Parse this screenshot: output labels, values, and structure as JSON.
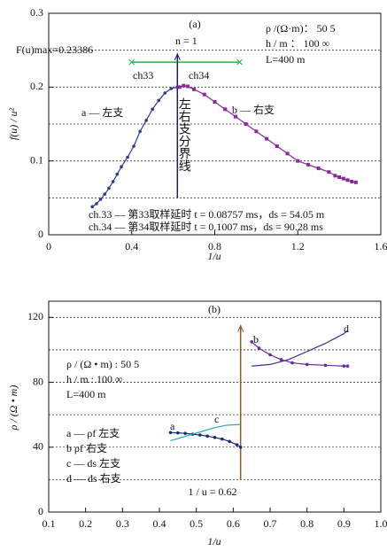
{
  "chart_data": [
    {
      "type": "line",
      "xlabel": "1/u",
      "ylabel": "f(u) / u²",
      "xlim": [
        0,
        1.6
      ],
      "xticks": [
        0,
        0.4,
        0.8,
        1.2,
        1.6
      ],
      "ylim": [
        0,
        0.3
      ],
      "yticks": [
        0,
        0.1,
        0.2,
        0.3
      ],
      "ygrid": [
        0.05,
        0.1,
        0.15,
        0.2,
        0.25
      ],
      "series": [
        {
          "color": "#2a3a9a",
          "marker": "circle",
          "x": [
            0.21,
            0.23,
            0.25,
            0.27,
            0.29,
            0.31,
            0.33,
            0.35,
            0.38,
            0.41,
            0.44,
            0.47,
            0.5,
            0.53,
            0.56,
            0.59,
            0.62
          ],
          "values": [
            0.038,
            0.042,
            0.048,
            0.055,
            0.063,
            0.072,
            0.082,
            0.092,
            0.105,
            0.12,
            0.14,
            0.155,
            0.17,
            0.182,
            0.192,
            0.198,
            0.2
          ]
        },
        {
          "color": "#8a2a9a",
          "marker": "square",
          "x": [
            0.63,
            0.65,
            0.67,
            0.7,
            0.75,
            0.8,
            0.85,
            0.9,
            0.95,
            1.0,
            1.05,
            1.1,
            1.15,
            1.2,
            1.25,
            1.3,
            1.35,
            1.38,
            1.4,
            1.42,
            1.44,
            1.46,
            1.48
          ],
          "values": [
            0.2,
            0.202,
            0.201,
            0.197,
            0.19,
            0.18,
            0.17,
            0.16,
            0.15,
            0.14,
            0.13,
            0.12,
            0.11,
            0.1,
            0.095,
            0.09,
            0.085,
            0.08,
            0.078,
            0.076,
            0.074,
            0.072,
            0.071
          ]
        }
      ],
      "hlines": [
        {
          "y": 0.23386,
          "xrange": [
            0.4,
            0.92
          ],
          "color": "#2bb24c"
        }
      ],
      "vlines": [
        {
          "x": 0.62,
          "yrange": [
            0.05,
            0.245
          ],
          "color": "#1a1a6e"
        }
      ],
      "annotations": [
        "(a)",
        "ρ /(Ω·m)：  50    5",
        "h / m ：      100   ∞",
        "L=400 m",
        "F(u)max=0.23386",
        "n = 1",
        "ch33",
        "ch34",
        "a — 左支",
        "b — 右支",
        "左右支分界线",
        "ch.33 — 第33取样延时 t = 0.08757 ms，ds = 54.05 m",
        "ch.34 — 第34取样延时 t = 0.1007 ms，ds = 90.28 ms"
      ]
    },
    {
      "type": "line",
      "xlabel": "1/u",
      "ylabel": "ρ / (Ω • m)",
      "xlim": [
        0.1,
        1.0
      ],
      "xticks": [
        0.1,
        0.2,
        0.3,
        0.4,
        0.5,
        0.6,
        0.7,
        0.8,
        0.9,
        {
          "value": 1,
          "label": "1.0"
        }
      ],
      "ylim": [
        0,
        130
      ],
      "yticks": [
        0,
        40,
        80,
        120
      ],
      "ygrid": [
        20,
        40,
        60,
        80,
        100,
        120
      ],
      "series": [
        {
          "color": "#1a2a7a",
          "marker": "circle",
          "x": [
            0.43,
            0.45,
            0.47,
            0.49,
            0.51,
            0.53,
            0.55,
            0.57,
            0.59,
            0.61,
            0.62
          ],
          "values": [
            49,
            48.8,
            48.5,
            48,
            47.5,
            46.8,
            46,
            45,
            43.5,
            41.5,
            40
          ]
        },
        {
          "color": "#20a8b0",
          "marker": "none",
          "x": [
            0.43,
            0.46,
            0.49,
            0.52,
            0.55,
            0.58,
            0.62
          ],
          "values": [
            44,
            46,
            48,
            50,
            52,
            53.5,
            54
          ]
        },
        {
          "color": "#6a2a9a",
          "marker": "circle",
          "x": [
            0.65,
            0.67,
            0.7,
            0.73,
            0.76,
            0.8,
            0.85,
            0.9,
            0.91
          ],
          "values": [
            105,
            101,
            97,
            94,
            92,
            91,
            90.5,
            90,
            90
          ]
        },
        {
          "color": "#3a2a9a",
          "marker": "none",
          "x": [
            0.65,
            0.7,
            0.75,
            0.8,
            0.85,
            0.9,
            0.91
          ],
          "values": [
            90,
            91,
            94,
            99,
            104,
            110,
            112
          ]
        }
      ],
      "hlines": [],
      "vlines": [
        {
          "x": 0.62,
          "yrange": [
            20,
            115
          ],
          "color": "#8a5a20"
        }
      ],
      "annotations": [
        "(b)",
        "ρ / (Ω • m) : 50    5",
        "h / m :         100   ∞",
        "L=400  m",
        "a",
        "b",
        "c",
        "d",
        "1 / u = 0.62",
        "a — ρf 左支",
        "b    ρf 右支",
        "c — ds 左支",
        "d — ds 右支"
      ]
    }
  ]
}
